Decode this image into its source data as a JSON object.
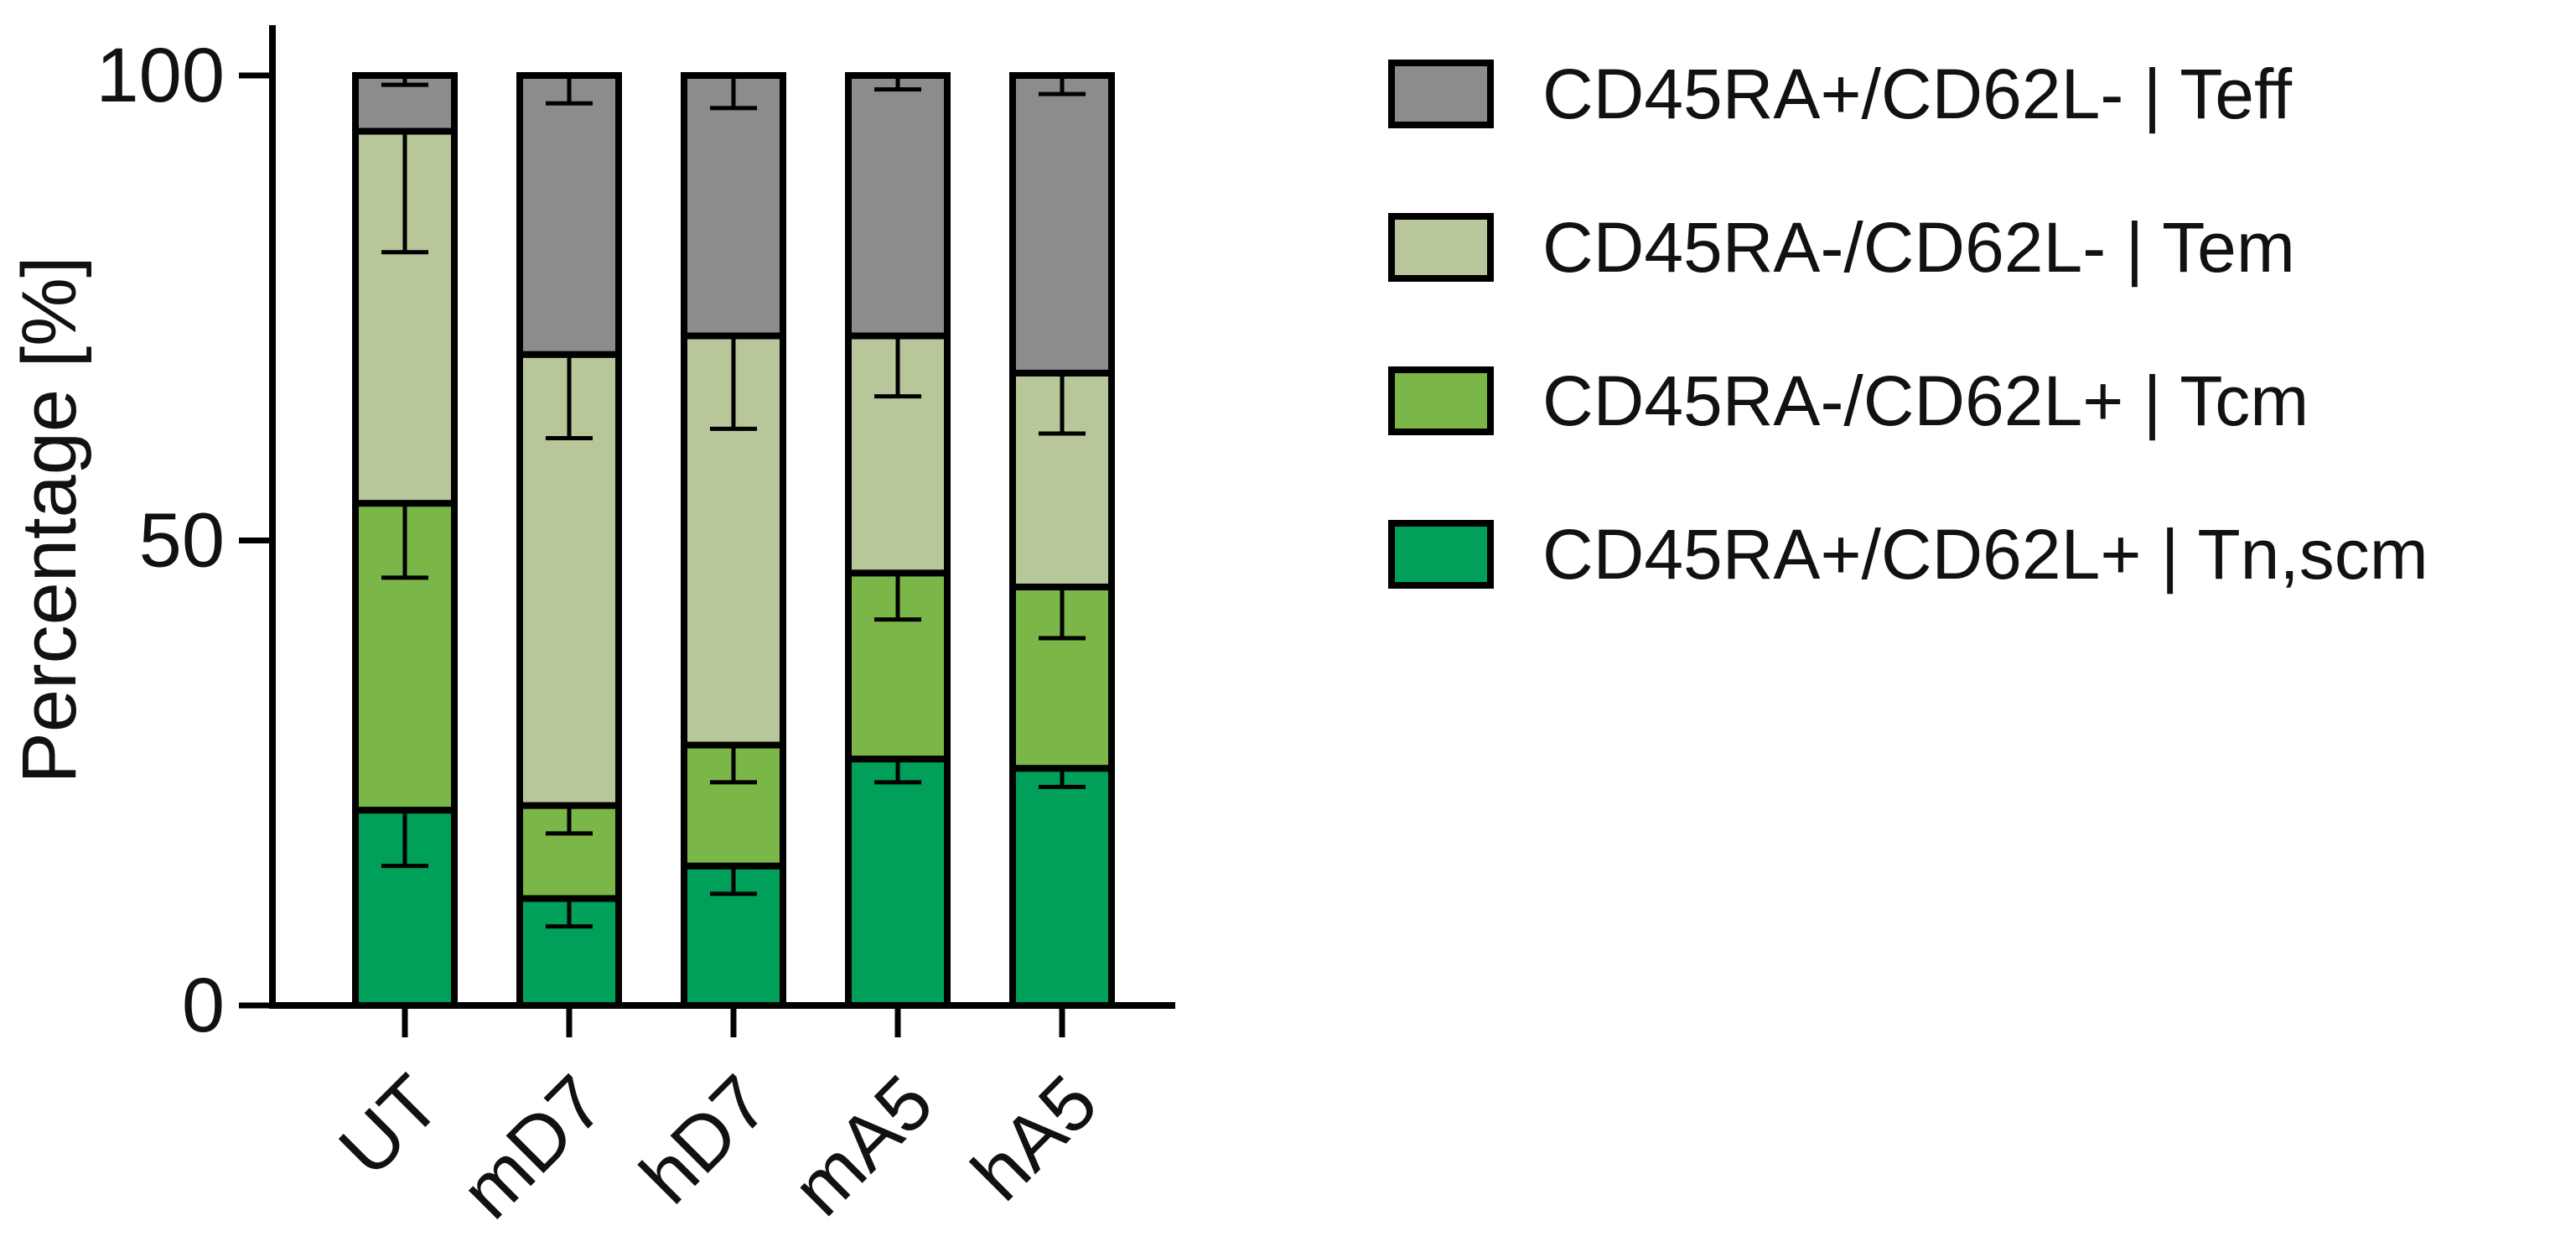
{
  "chart_data": {
    "type": "bar",
    "stacked": true,
    "title": "",
    "xlabel": "",
    "ylabel": "Percentage [%]",
    "ylim": [
      0,
      100
    ],
    "yticks": [
      0,
      50,
      100
    ],
    "grid": false,
    "legend_position": "right",
    "categories": [
      "UT",
      "mD7",
      "hD7",
      "mA5",
      "hA5"
    ],
    "series": [
      {
        "name": "CD45RA+/CD62L+ | Tn,scm",
        "color": "#00a05a",
        "values": [
          21,
          11.5,
          15,
          26.5,
          25.5
        ],
        "error": [
          6,
          3,
          3,
          2.5,
          2
        ]
      },
      {
        "name": "CD45RA-/CD62L+ | Tcm",
        "color": "#7ab648",
        "values": [
          33,
          10,
          13,
          20,
          19.5
        ],
        "error": [
          8,
          3,
          4,
          5,
          5.5
        ]
      },
      {
        "name": "CD45RA-/CD62L- | Tem",
        "color": "#b8c79a",
        "values": [
          40,
          48.5,
          44,
          25.5,
          23
        ],
        "error": [
          13,
          9,
          10,
          6.5,
          6.5
        ]
      },
      {
        "name": "CD45RA+/CD62L- | Teff",
        "color": "#8c8c8c",
        "values": [
          6,
          30,
          28,
          28,
          32
        ],
        "error": [
          1,
          3,
          3.5,
          1.5,
          2
        ]
      }
    ]
  }
}
